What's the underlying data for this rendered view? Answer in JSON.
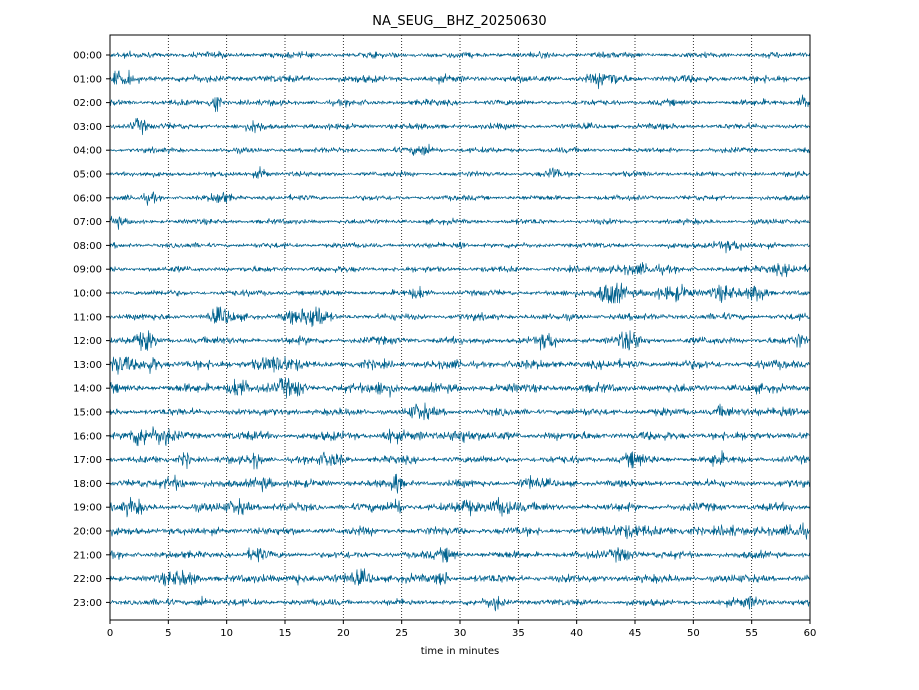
{
  "chart_data": {
    "type": "line",
    "title": "NA_SEUG__BHZ_20250630",
    "xlabel": "time in minutes",
    "ylabel": "",
    "xlim": [
      0,
      60
    ],
    "x_ticks": [
      0,
      5,
      10,
      15,
      20,
      25,
      30,
      35,
      40,
      45,
      50,
      55,
      60
    ],
    "grid": "vertical dotted",
    "trace_color": "#00628e",
    "rows": [
      {
        "label": "00:00",
        "noise": 0.9,
        "events": []
      },
      {
        "label": "01:00",
        "noise": 1.1,
        "events": [
          [
            1,
            1.5,
            1
          ],
          [
            42.5,
            1.6,
            1.2
          ]
        ]
      },
      {
        "label": "02:00",
        "noise": 0.9,
        "events": [
          [
            9,
            4.2,
            0.4
          ],
          [
            59.5,
            1.8,
            0.6
          ]
        ]
      },
      {
        "label": "03:00",
        "noise": 0.9,
        "events": [
          [
            2.5,
            2.0,
            0.7
          ],
          [
            12.5,
            1.4,
            0.6
          ]
        ]
      },
      {
        "label": "04:00",
        "noise": 0.8,
        "events": [
          [
            27,
            1.4,
            1.0
          ]
        ]
      },
      {
        "label": "05:00",
        "noise": 0.8,
        "events": [
          [
            13,
            1.4,
            0.6
          ],
          [
            38,
            1.6,
            0.5
          ]
        ]
      },
      {
        "label": "06:00",
        "noise": 0.8,
        "events": [
          [
            9.5,
            1.5,
            0.8
          ],
          [
            3.5,
            1.2,
            0.6
          ]
        ]
      },
      {
        "label": "07:00",
        "noise": 0.8,
        "events": [
          [
            0.5,
            1.4,
            0.5
          ]
        ]
      },
      {
        "label": "08:00",
        "noise": 0.8,
        "events": [
          [
            30,
            1.3,
            0.5
          ],
          [
            53,
            1.3,
            1.5
          ]
        ]
      },
      {
        "label": "09:00",
        "noise": 0.9,
        "events": [
          [
            45,
            1.4,
            2.0
          ],
          [
            58,
            1.4,
            1.5
          ]
        ]
      },
      {
        "label": "10:00",
        "noise": 0.9,
        "events": [
          [
            43,
            4.0,
            1.2
          ],
          [
            48.5,
            2.0,
            1.5
          ],
          [
            52.5,
            1.8,
            1.2
          ],
          [
            55.5,
            2.5,
            0.8
          ],
          [
            26.5,
            1.4,
            0.6
          ]
        ]
      },
      {
        "label": "11:00",
        "noise": 1.0,
        "events": [
          [
            17.5,
            3.5,
            1.0
          ],
          [
            9.5,
            2.2,
            1.0
          ],
          [
            15.5,
            1.5,
            0.8
          ]
        ]
      },
      {
        "label": "12:00",
        "noise": 1.1,
        "events": [
          [
            3,
            2.4,
            0.8
          ],
          [
            44.5,
            2.3,
            1.0
          ],
          [
            37.5,
            1.7,
            0.8
          ],
          [
            59,
            1.5,
            0.5
          ]
        ]
      },
      {
        "label": "13:00",
        "noise": 1.3,
        "events": [
          [
            0.8,
            2.0,
            1.0
          ],
          [
            3.5,
            1.8,
            0.8
          ],
          [
            14,
            1.5,
            2.0
          ]
        ]
      },
      {
        "label": "14:00",
        "noise": 1.3,
        "events": [
          [
            11,
            2.8,
            0.8
          ],
          [
            15,
            2.8,
            0.5
          ],
          [
            16.2,
            2.4,
            0.5
          ],
          [
            23.5,
            1.8,
            1.0
          ]
        ]
      },
      {
        "label": "15:00",
        "noise": 1.1,
        "events": [
          [
            26.5,
            1.8,
            1.0
          ],
          [
            58,
            1.7,
            1.0
          ],
          [
            52.5,
            1.5,
            0.8
          ]
        ]
      },
      {
        "label": "16:00",
        "noise": 1.3,
        "events": [
          [
            2.5,
            3.0,
            1.0
          ],
          [
            4.5,
            2.0,
            0.8
          ],
          [
            24,
            2.0,
            0.6
          ],
          [
            30,
            1.8,
            1.0
          ]
        ]
      },
      {
        "label": "17:00",
        "noise": 1.1,
        "events": [
          [
            6.5,
            1.8,
            0.5
          ],
          [
            12.5,
            2.0,
            0.5
          ],
          [
            19,
            1.6,
            1.0
          ],
          [
            45,
            1.8,
            0.8
          ],
          [
            52,
            1.6,
            0.6
          ]
        ]
      },
      {
        "label": "18:00",
        "noise": 1.1,
        "events": [
          [
            24.5,
            3.0,
            0.4
          ],
          [
            5.5,
            1.7,
            1.0
          ],
          [
            13,
            1.6,
            1.0
          ],
          [
            36,
            1.6,
            0.8
          ]
        ]
      },
      {
        "label": "19:00",
        "noise": 1.2,
        "events": [
          [
            33.5,
            2.5,
            1.2
          ],
          [
            24.5,
            2.4,
            0.5
          ],
          [
            11,
            1.8,
            1.0
          ],
          [
            2,
            1.8,
            0.8
          ],
          [
            30.5,
            1.6,
            0.8
          ]
        ]
      },
      {
        "label": "20:00",
        "noise": 1.2,
        "events": [
          [
            59,
            2.0,
            1.0
          ],
          [
            45,
            1.5,
            2.0
          ],
          [
            53,
            1.5,
            1.0
          ]
        ]
      },
      {
        "label": "21:00",
        "noise": 1.1,
        "events": [
          [
            12.5,
            1.8,
            0.6
          ],
          [
            44,
            1.8,
            1.0
          ],
          [
            29,
            1.5,
            0.8
          ]
        ]
      },
      {
        "label": "22:00",
        "noise": 1.2,
        "events": [
          [
            21.5,
            1.8,
            1.2
          ],
          [
            28.5,
            2.0,
            0.5
          ],
          [
            6,
            1.5,
            1.5
          ],
          [
            16,
            1.5,
            0.6
          ]
        ]
      },
      {
        "label": "23:00",
        "noise": 1.0,
        "events": [
          [
            33,
            1.8,
            0.6
          ],
          [
            8,
            1.4,
            0.6
          ],
          [
            55,
            1.4,
            1.0
          ]
        ]
      }
    ]
  }
}
